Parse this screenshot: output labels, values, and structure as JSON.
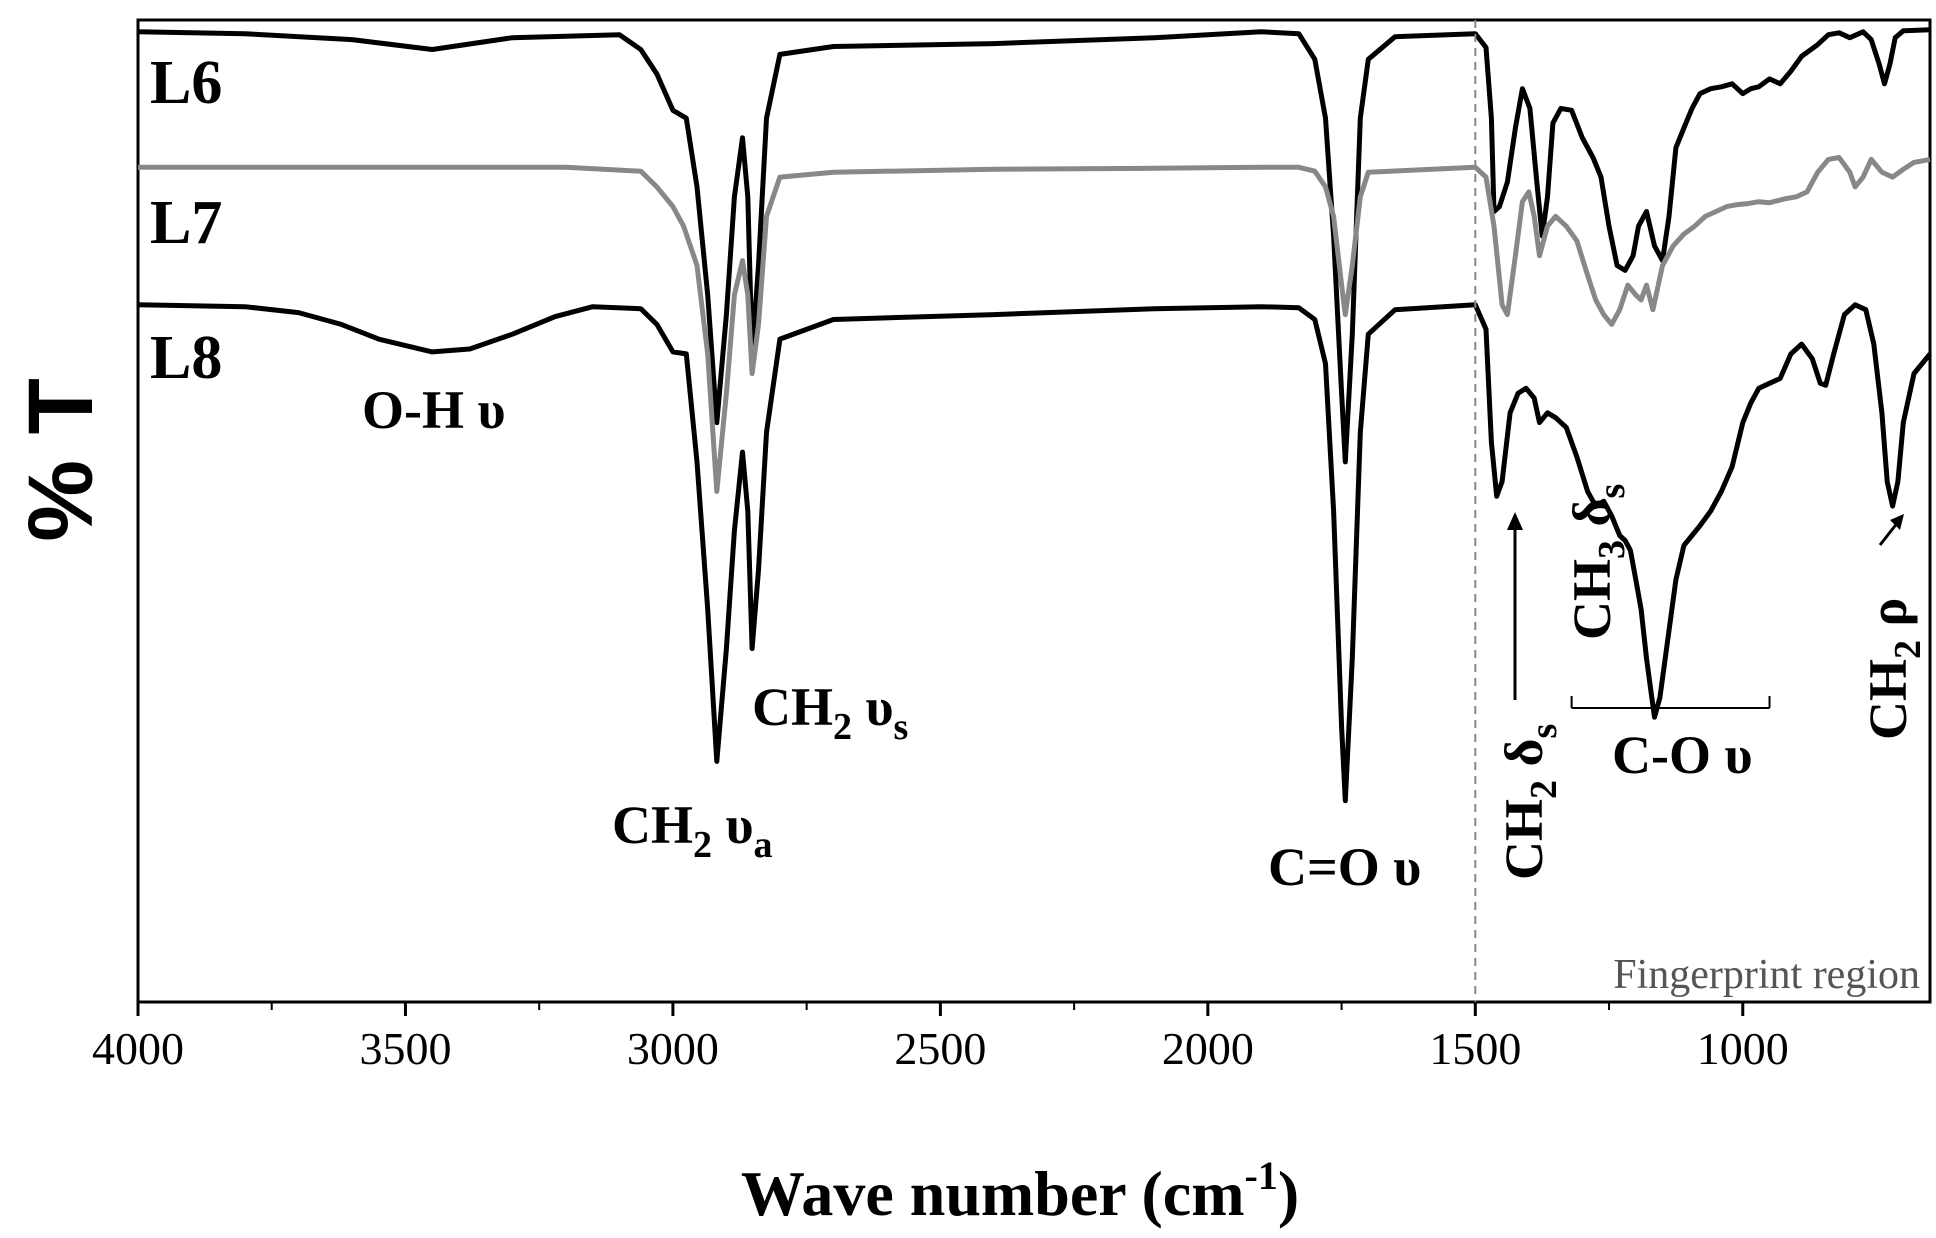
{
  "chart_data": {
    "type": "line",
    "title": "",
    "xlabel_main": "Wave number (cm",
    "xlabel_sup": "-1",
    "xlabel_tail": ")",
    "ylabel": "% T",
    "xlim": [
      4000,
      650
    ],
    "x_ticks": [
      "4000",
      "3500",
      "3000",
      "2500",
      "2000",
      "1500",
      "1000"
    ],
    "x_tick_values": [
      4000,
      3500,
      3000,
      2500,
      2000,
      1500,
      1000
    ],
    "y_ticks_shown": false,
    "ylim": [
      0,
      100
    ],
    "grid": false,
    "legend": "none",
    "series": [
      {
        "name": "L6",
        "color": "#000000",
        "points": [
          [
            4000,
            98.8
          ],
          [
            3800,
            98.6
          ],
          [
            3600,
            98.0
          ],
          [
            3450,
            97.0
          ],
          [
            3300,
            98.2
          ],
          [
            3100,
            98.5
          ],
          [
            3060,
            97.0
          ],
          [
            3030,
            94.5
          ],
          [
            3000,
            90.8
          ],
          [
            2975,
            90.0
          ],
          [
            2955,
            83.0
          ],
          [
            2935,
            72.0
          ],
          [
            2918,
            59.0
          ],
          [
            2900,
            70.0
          ],
          [
            2885,
            82.0
          ],
          [
            2870,
            88.0
          ],
          [
            2860,
            82.0
          ],
          [
            2852,
            66.0
          ],
          [
            2840,
            75.0
          ],
          [
            2825,
            90.0
          ],
          [
            2800,
            96.5
          ],
          [
            2700,
            97.3
          ],
          [
            2400,
            97.6
          ],
          [
            2100,
            98.2
          ],
          [
            1900,
            98.8
          ],
          [
            1830,
            98.6
          ],
          [
            1800,
            96.0
          ],
          [
            1780,
            90.0
          ],
          [
            1765,
            78.0
          ],
          [
            1750,
            62.0
          ],
          [
            1743,
            55.0
          ],
          [
            1730,
            68.0
          ],
          [
            1715,
            90.0
          ],
          [
            1700,
            96.0
          ],
          [
            1650,
            98.3
          ],
          [
            1500,
            98.6
          ],
          [
            1480,
            97.2
          ],
          [
            1470,
            90.0
          ],
          [
            1465,
            80.5
          ],
          [
            1455,
            81.0
          ],
          [
            1440,
            83.5
          ],
          [
            1425,
            89.0
          ],
          [
            1412,
            93.0
          ],
          [
            1398,
            91.0
          ],
          [
            1385,
            83.5
          ],
          [
            1375,
            78.0
          ],
          [
            1365,
            82.0
          ],
          [
            1355,
            89.5
          ],
          [
            1340,
            91.0
          ],
          [
            1320,
            90.8
          ],
          [
            1300,
            88.0
          ],
          [
            1280,
            86.0
          ],
          [
            1265,
            84.0
          ],
          [
            1250,
            79.0
          ],
          [
            1235,
            75.0
          ],
          [
            1220,
            74.5
          ],
          [
            1205,
            76.0
          ],
          [
            1195,
            79.0
          ],
          [
            1180,
            80.5
          ],
          [
            1165,
            77.0
          ],
          [
            1150,
            75.5
          ],
          [
            1138,
            80.0
          ],
          [
            1125,
            87.0
          ],
          [
            1110,
            89.0
          ],
          [
            1095,
            91.0
          ],
          [
            1080,
            92.5
          ],
          [
            1060,
            93.0
          ],
          [
            1040,
            93.2
          ],
          [
            1020,
            93.5
          ],
          [
            1000,
            92.5
          ],
          [
            985,
            93.0
          ],
          [
            970,
            93.2
          ],
          [
            950,
            94.0
          ],
          [
            930,
            93.5
          ],
          [
            910,
            94.8
          ],
          [
            890,
            96.3
          ],
          [
            860,
            97.5
          ],
          [
            840,
            98.5
          ],
          [
            820,
            98.7
          ],
          [
            800,
            98.2
          ],
          [
            775,
            98.8
          ],
          [
            760,
            98.0
          ],
          [
            745,
            95.5
          ],
          [
            735,
            93.5
          ],
          [
            725,
            95.5
          ],
          [
            715,
            98.2
          ],
          [
            700,
            98.9
          ],
          [
            650,
            99.0
          ]
        ]
      },
      {
        "name": "L7",
        "color": "#888888",
        "points": [
          [
            4000,
            85.0
          ],
          [
            3600,
            85.0
          ],
          [
            3200,
            85.0
          ],
          [
            3060,
            84.6
          ],
          [
            3030,
            83.0
          ],
          [
            3000,
            81.0
          ],
          [
            2980,
            79.0
          ],
          [
            2955,
            75.0
          ],
          [
            2935,
            66.0
          ],
          [
            2918,
            52.0
          ],
          [
            2900,
            62.0
          ],
          [
            2885,
            72.0
          ],
          [
            2870,
            75.5
          ],
          [
            2860,
            72.0
          ],
          [
            2852,
            64.0
          ],
          [
            2840,
            69.0
          ],
          [
            2825,
            80.0
          ],
          [
            2800,
            84.0
          ],
          [
            2700,
            84.5
          ],
          [
            2400,
            84.8
          ],
          [
            2100,
            84.9
          ],
          [
            1900,
            85.0
          ],
          [
            1830,
            85.0
          ],
          [
            1800,
            84.6
          ],
          [
            1780,
            83.0
          ],
          [
            1765,
            80.0
          ],
          [
            1750,
            73.0
          ],
          [
            1743,
            70.0
          ],
          [
            1730,
            75.0
          ],
          [
            1715,
            82.0
          ],
          [
            1700,
            84.5
          ],
          [
            1500,
            85.0
          ],
          [
            1480,
            84.0
          ],
          [
            1465,
            79.0
          ],
          [
            1450,
            71.0
          ],
          [
            1440,
            70.0
          ],
          [
            1425,
            76.0
          ],
          [
            1412,
            81.5
          ],
          [
            1400,
            82.5
          ],
          [
            1390,
            80.0
          ],
          [
            1380,
            76.0
          ],
          [
            1365,
            79.0
          ],
          [
            1350,
            80.0
          ],
          [
            1330,
            79.0
          ],
          [
            1310,
            77.5
          ],
          [
            1290,
            74.0
          ],
          [
            1275,
            71.5
          ],
          [
            1260,
            70.0
          ],
          [
            1245,
            69.0
          ],
          [
            1230,
            70.5
          ],
          [
            1215,
            73.0
          ],
          [
            1200,
            72.0
          ],
          [
            1190,
            71.5
          ],
          [
            1180,
            73.0
          ],
          [
            1168,
            70.5
          ],
          [
            1150,
            75.0
          ],
          [
            1130,
            77.0
          ],
          [
            1110,
            78.2
          ],
          [
            1090,
            79.0
          ],
          [
            1070,
            80.0
          ],
          [
            1050,
            80.5
          ],
          [
            1030,
            81.0
          ],
          [
            1010,
            81.2
          ],
          [
            990,
            81.3
          ],
          [
            970,
            81.5
          ],
          [
            950,
            81.4
          ],
          [
            920,
            81.8
          ],
          [
            900,
            82.0
          ],
          [
            880,
            82.5
          ],
          [
            860,
            84.5
          ],
          [
            840,
            85.8
          ],
          [
            820,
            86.0
          ],
          [
            800,
            84.5
          ],
          [
            790,
            83.0
          ],
          [
            775,
            84.0
          ],
          [
            760,
            85.8
          ],
          [
            740,
            84.5
          ],
          [
            720,
            84.0
          ],
          [
            700,
            84.8
          ],
          [
            680,
            85.5
          ],
          [
            650,
            85.8
          ]
        ]
      },
      {
        "name": "L8",
        "color": "#000000",
        "points": [
          [
            4000,
            71.0
          ],
          [
            3800,
            70.8
          ],
          [
            3700,
            70.2
          ],
          [
            3620,
            69.0
          ],
          [
            3550,
            67.5
          ],
          [
            3450,
            66.2
          ],
          [
            3380,
            66.5
          ],
          [
            3300,
            68.0
          ],
          [
            3220,
            69.8
          ],
          [
            3150,
            70.8
          ],
          [
            3060,
            70.6
          ],
          [
            3030,
            69.0
          ],
          [
            3000,
            66.2
          ],
          [
            2975,
            66.0
          ],
          [
            2955,
            55.0
          ],
          [
            2935,
            40.0
          ],
          [
            2918,
            24.5
          ],
          [
            2900,
            36.0
          ],
          [
            2885,
            48.0
          ],
          [
            2870,
            56.0
          ],
          [
            2860,
            50.0
          ],
          [
            2852,
            36.0
          ],
          [
            2840,
            44.0
          ],
          [
            2825,
            58.0
          ],
          [
            2800,
            67.5
          ],
          [
            2700,
            69.5
          ],
          [
            2400,
            70.0
          ],
          [
            2100,
            70.6
          ],
          [
            1900,
            70.8
          ],
          [
            1830,
            70.7
          ],
          [
            1800,
            69.5
          ],
          [
            1780,
            65.0
          ],
          [
            1765,
            50.0
          ],
          [
            1750,
            28.0
          ],
          [
            1743,
            20.5
          ],
          [
            1730,
            35.0
          ],
          [
            1715,
            58.0
          ],
          [
            1700,
            68.0
          ],
          [
            1650,
            70.5
          ],
          [
            1500,
            71.0
          ],
          [
            1480,
            68.5
          ],
          [
            1470,
            57.0
          ],
          [
            1460,
            51.5
          ],
          [
            1450,
            53.0
          ],
          [
            1435,
            60.0
          ],
          [
            1420,
            62.0
          ],
          [
            1405,
            62.5
          ],
          [
            1390,
            61.5
          ],
          [
            1380,
            59.0
          ],
          [
            1365,
            60.0
          ],
          [
            1350,
            59.5
          ],
          [
            1330,
            58.5
          ],
          [
            1310,
            55.5
          ],
          [
            1290,
            52.0
          ],
          [
            1275,
            50.5
          ],
          [
            1260,
            51.0
          ],
          [
            1245,
            49.5
          ],
          [
            1230,
            47.5
          ],
          [
            1220,
            47.0
          ],
          [
            1210,
            46.0
          ],
          [
            1200,
            43.0
          ],
          [
            1190,
            40.0
          ],
          [
            1180,
            35.0
          ],
          [
            1170,
            31.0
          ],
          [
            1165,
            29.0
          ],
          [
            1155,
            31.0
          ],
          [
            1140,
            37.0
          ],
          [
            1125,
            43.0
          ],
          [
            1110,
            46.5
          ],
          [
            1095,
            47.5
          ],
          [
            1080,
            48.5
          ],
          [
            1060,
            50.0
          ],
          [
            1040,
            52.0
          ],
          [
            1020,
            54.5
          ],
          [
            1000,
            59.0
          ],
          [
            985,
            61.0
          ],
          [
            970,
            62.5
          ],
          [
            950,
            63.0
          ],
          [
            930,
            63.5
          ],
          [
            910,
            66.0
          ],
          [
            890,
            67.0
          ],
          [
            870,
            65.5
          ],
          [
            855,
            63.0
          ],
          [
            845,
            62.8
          ],
          [
            830,
            66.0
          ],
          [
            810,
            70.0
          ],
          [
            790,
            71.0
          ],
          [
            770,
            70.5
          ],
          [
            755,
            67.0
          ],
          [
            740,
            60.0
          ],
          [
            730,
            53.0
          ],
          [
            720,
            50.5
          ],
          [
            710,
            53.0
          ],
          [
            700,
            59.0
          ],
          [
            680,
            64.0
          ],
          [
            650,
            66.0
          ]
        ]
      }
    ],
    "series_labels": [
      {
        "name": "L6",
        "text": "L6"
      },
      {
        "name": "L7",
        "text": "L7"
      },
      {
        "name": "L8",
        "text": "L8"
      }
    ],
    "annotations": [
      {
        "id": "oh",
        "main": "O-H υ",
        "sub": ""
      },
      {
        "id": "ch2va",
        "main": "CH",
        "sub": "2",
        "tail": " υ",
        "tailsub": "a"
      },
      {
        "id": "ch2vs",
        "main": "CH",
        "sub": "2",
        "tail": " υ",
        "tailsub": "s"
      },
      {
        "id": "co-double",
        "main": "C=O υ"
      },
      {
        "id": "ch2ds",
        "main": "CH",
        "sub": "2",
        "tail": " δ",
        "tailsub": "s"
      },
      {
        "id": "ch3ds",
        "main": "CH",
        "sub": "3",
        "tail": " δ",
        "tailsub": "s"
      },
      {
        "id": "co-single",
        "main": "C-O υ"
      },
      {
        "id": "ch2rho",
        "main": "CH",
        "sub": "2",
        "tail": " ρ"
      }
    ],
    "fingerprint_boundary": 1500,
    "fingerprint_label": "Fingerprint region",
    "co_bracket_range": [
      1320,
      950
    ]
  }
}
